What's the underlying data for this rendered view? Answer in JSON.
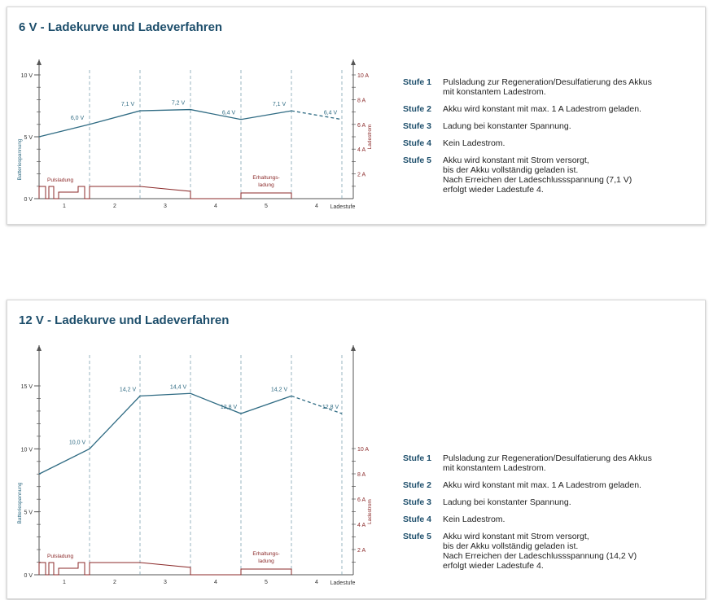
{
  "chart_data": [
    {
      "type": "line",
      "title": "6 V - Ladekurve und Ladeverfahren",
      "ylabel": "Batteriespannung",
      "y2label": "Ladestrom",
      "xlabel": "Ladestufe",
      "ylim": [
        0,
        10
      ],
      "y2lim": [
        0,
        10
      ],
      "yticks": [
        "0 V",
        "5 V",
        "10 V"
      ],
      "y2ticks": [
        "2 A",
        "4 A",
        "6 A",
        "8 A",
        "10 A"
      ],
      "stages": [
        "1",
        "2",
        "3",
        "4",
        "5",
        "4"
      ],
      "voltage_series": {
        "name": "Batteriespannung",
        "x": [
          0,
          1,
          2,
          3,
          4,
          5,
          6
        ],
        "y": [
          5.0,
          6.0,
          7.1,
          7.2,
          6.4,
          7.1,
          6.4
        ],
        "point_labels": [
          "",
          "6,0 V",
          "7,1 V",
          "7,2 V",
          "6,4 V",
          "7,1 V",
          "6,4 V"
        ],
        "dashed_from": 5
      },
      "current_annotations": [
        "Pulsladung",
        "Erhaltungs-\nladung"
      ],
      "grid": false
    },
    {
      "type": "line",
      "title": "12 V - Ladekurve und Ladeverfahren",
      "ylabel": "Batteriespannung",
      "y2label": "Ladestrom",
      "xlabel": "Ladestufe",
      "ylim": [
        0,
        15
      ],
      "y2lim": [
        0,
        10
      ],
      "yticks": [
        "0 V",
        "5 V",
        "10 V",
        "15 V"
      ],
      "y2ticks": [
        "2 A",
        "4 A",
        "6 A",
        "8 A",
        "10 A"
      ],
      "stages": [
        "1",
        "2",
        "3",
        "4",
        "5",
        "4"
      ],
      "voltage_series": {
        "name": "Batteriespannung",
        "x": [
          0,
          1,
          2,
          3,
          4,
          5,
          6
        ],
        "y": [
          8.0,
          10.0,
          14.2,
          14.4,
          12.8,
          14.2,
          12.8
        ],
        "point_labels": [
          "",
          "10,0 V",
          "14,2 V",
          "14,4 V",
          "12,8 V",
          "14,2 V",
          "12,8 V"
        ],
        "dashed_from": 5
      },
      "current_annotations": [
        "Pulsladung",
        "Erhaltungs-\nladung"
      ],
      "grid": false
    }
  ],
  "legend_6v": [
    {
      "key": "Stufe 1",
      "text": "Pulsladung zur Regeneration/Desulfatierung des Akkus\nmit konstantem Ladestrom."
    },
    {
      "key": "Stufe 2",
      "text": "Akku wird konstant mit max. 1 A Ladestrom geladen."
    },
    {
      "key": "Stufe 3",
      "text": "Ladung bei konstanter Spannung."
    },
    {
      "key": "Stufe 4",
      "text": "Kein Ladestrom."
    },
    {
      "key": "Stufe 5",
      "text": "Akku wird konstant mit Strom versorgt,\nbis der Akku vollständig geladen ist.\nNach Erreichen der Ladeschlussspannung (7,1 V)\nerfolgt wieder Ladestufe 4."
    }
  ],
  "legend_12v": [
    {
      "key": "Stufe 1",
      "text": "Pulsladung zur Regeneration/Desulfatierung des Akkus\nmit konstantem Ladestrom."
    },
    {
      "key": "Stufe 2",
      "text": "Akku wird konstant mit max. 1 A Ladestrom geladen."
    },
    {
      "key": "Stufe 3",
      "text": "Ladung bei konstanter Spannung."
    },
    {
      "key": "Stufe 4",
      "text": "Kein Ladestrom."
    },
    {
      "key": "Stufe 5",
      "text": "Akku wird konstant mit Strom versorgt,\nbis der Akku vollständig geladen ist.\nNach Erreichen der Ladeschlussspannung (14,2 V)\nerfolgt wieder Ladestufe 4."
    }
  ],
  "colors": {
    "title": "#1d4e6b",
    "voltage_line": "#2f6b83",
    "current_line": "#8b2a2a",
    "axis": "#555555",
    "divider": "#7fa3b3"
  }
}
